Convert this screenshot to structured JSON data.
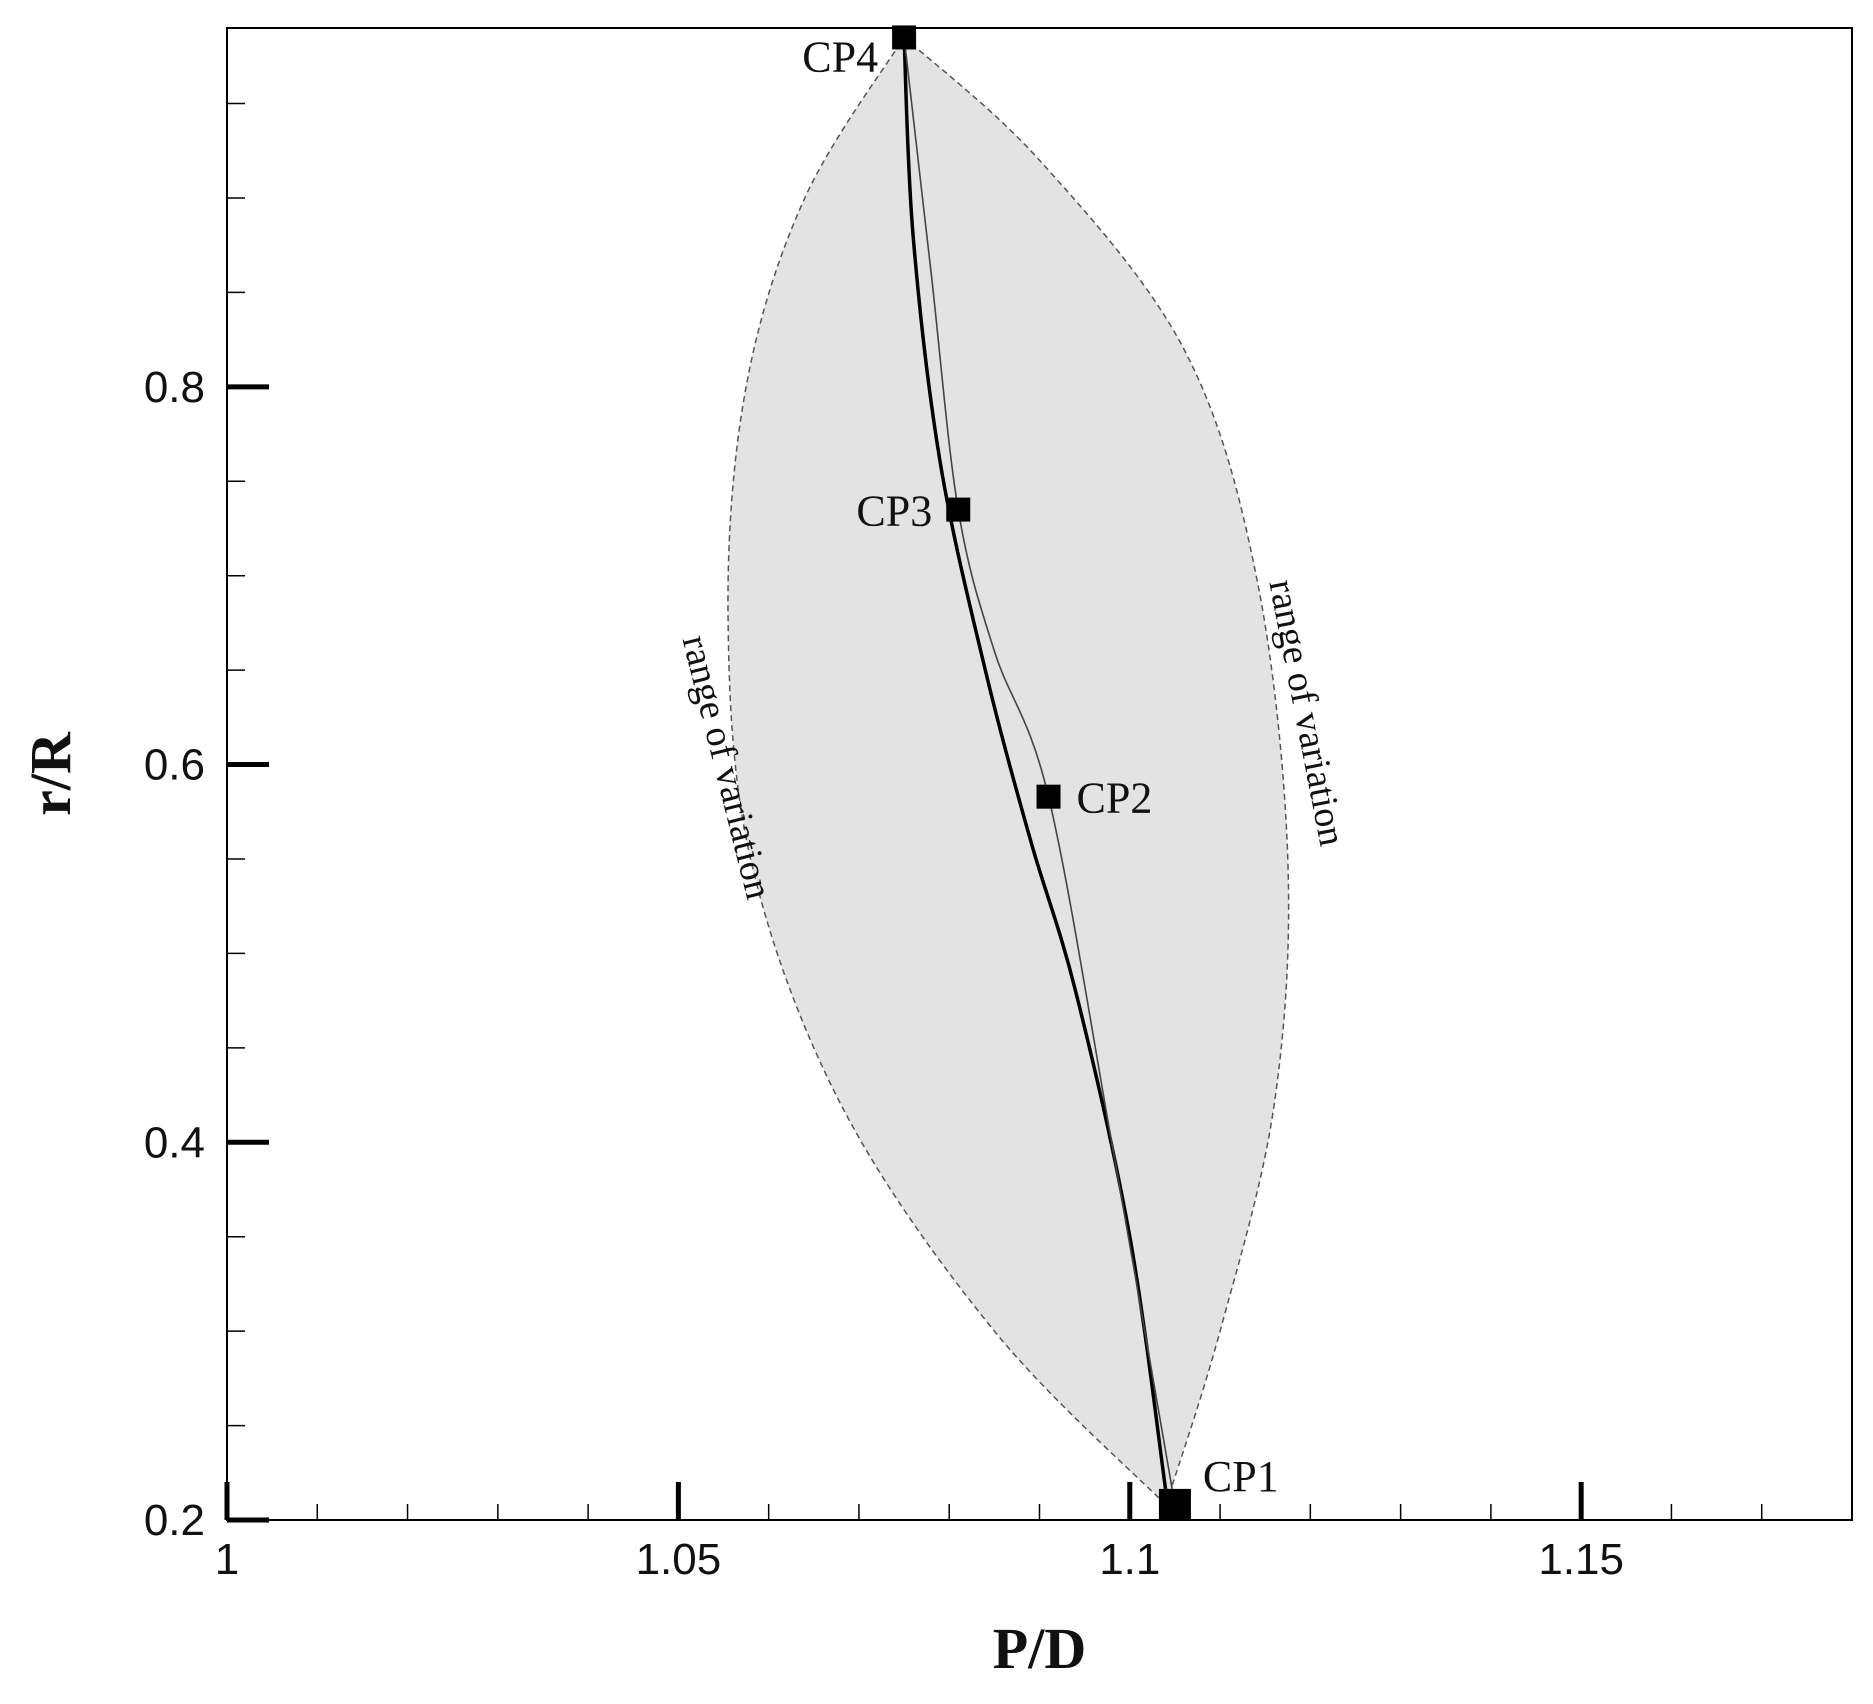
{
  "chart_data": {
    "type": "line",
    "xlabel": "P/D",
    "ylabel": "r/R",
    "xlim": [
      1.0,
      1.18
    ],
    "ylim": [
      0.2,
      0.99
    ],
    "x_ticks": {
      "major": [
        1.0,
        1.05,
        1.1,
        1.15
      ],
      "labels": [
        "1",
        "1.05",
        "1.1",
        "1.15"
      ],
      "minor_step": 0.01
    },
    "y_ticks": {
      "major": [
        0.2,
        0.4,
        0.6,
        0.8
      ],
      "labels": [
        "0.2",
        "0.4",
        "0.6",
        "0.8"
      ],
      "minor_step": 0.05
    },
    "grid": false,
    "control_points": [
      {
        "label": "CP1",
        "x": 1.105,
        "y": 0.208
      },
      {
        "label": "CP2",
        "x": 1.091,
        "y": 0.583
      },
      {
        "label": "CP3",
        "x": 1.081,
        "y": 0.735
      },
      {
        "label": "CP4",
        "x": 1.075,
        "y": 0.985
      }
    ],
    "series": [
      {
        "style": "thick",
        "x": [
          1.104,
          1.1,
          1.094,
          1.089,
          1.084,
          1.079,
          1.076,
          1.075
        ],
        "y": [
          0.215,
          0.35,
          0.48,
          0.56,
          0.65,
          0.76,
          0.88,
          0.985
        ]
      },
      {
        "style": "thin",
        "x": [
          1.105,
          1.098,
          1.091,
          1.085,
          1.081,
          1.078,
          1.075
        ],
        "y": [
          0.208,
          0.4,
          0.583,
          0.66,
          0.735,
          0.86,
          0.985
        ]
      }
    ],
    "range_of_variation": {
      "left_bound": {
        "x": [
          1.104,
          1.085,
          1.068,
          1.058,
          1.0555,
          1.0575,
          1.064,
          1.075
        ],
        "y": [
          0.208,
          0.3,
          0.42,
          0.55,
          0.68,
          0.8,
          0.9,
          0.985
        ]
      },
      "right_bound": {
        "x": [
          1.075,
          1.09,
          1.106,
          1.114,
          1.1175,
          1.116,
          1.11,
          1.104
        ],
        "y": [
          0.985,
          0.92,
          0.82,
          0.7,
          0.55,
          0.42,
          0.3,
          0.208
        ]
      },
      "labels": [
        "range of variation",
        "range of variation"
      ]
    }
  }
}
